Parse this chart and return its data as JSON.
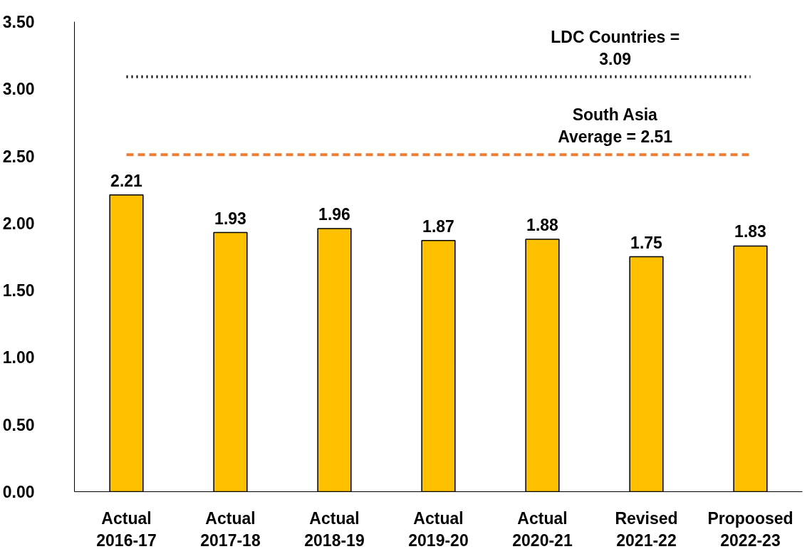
{
  "chart_data": {
    "type": "bar",
    "categories": [
      "Actual\n2016-17",
      "Actual\n2017-18",
      "Actual\n2018-19",
      "Actual\n2019-20",
      "Actual\n2020-21",
      "Revised\n2021-22",
      "Propoosed\n2022-23"
    ],
    "values": [
      2.21,
      1.93,
      1.96,
      1.87,
      1.88,
      1.75,
      1.83
    ],
    "color": "#ffc000",
    "data_labels": true,
    "ylim": [
      0,
      3.5
    ],
    "yticks": [
      {
        "value": 0,
        "label": "0.00"
      },
      {
        "value": 0.5,
        "label": "0.50"
      },
      {
        "value": 1,
        "label": "1.00"
      },
      {
        "value": 1.5,
        "label": "1.50"
      },
      {
        "value": 2,
        "label": "2.00"
      },
      {
        "value": 2.5,
        "label": "2.50"
      },
      {
        "value": 3,
        "label": "3.00"
      },
      {
        "value": 3.5,
        "label": "3.50"
      }
    ],
    "ref_lines": [
      {
        "axis": "y",
        "value": 3.09,
        "label": "LDC Countries =\n3.09",
        "color": "#000000",
        "line_style": "dotted"
      },
      {
        "axis": "y",
        "value": 2.51,
        "label": "South Asia\nAverage = 2.51",
        "color": "#ed7d31",
        "line_style": "dashed"
      }
    ],
    "grid": false
  }
}
